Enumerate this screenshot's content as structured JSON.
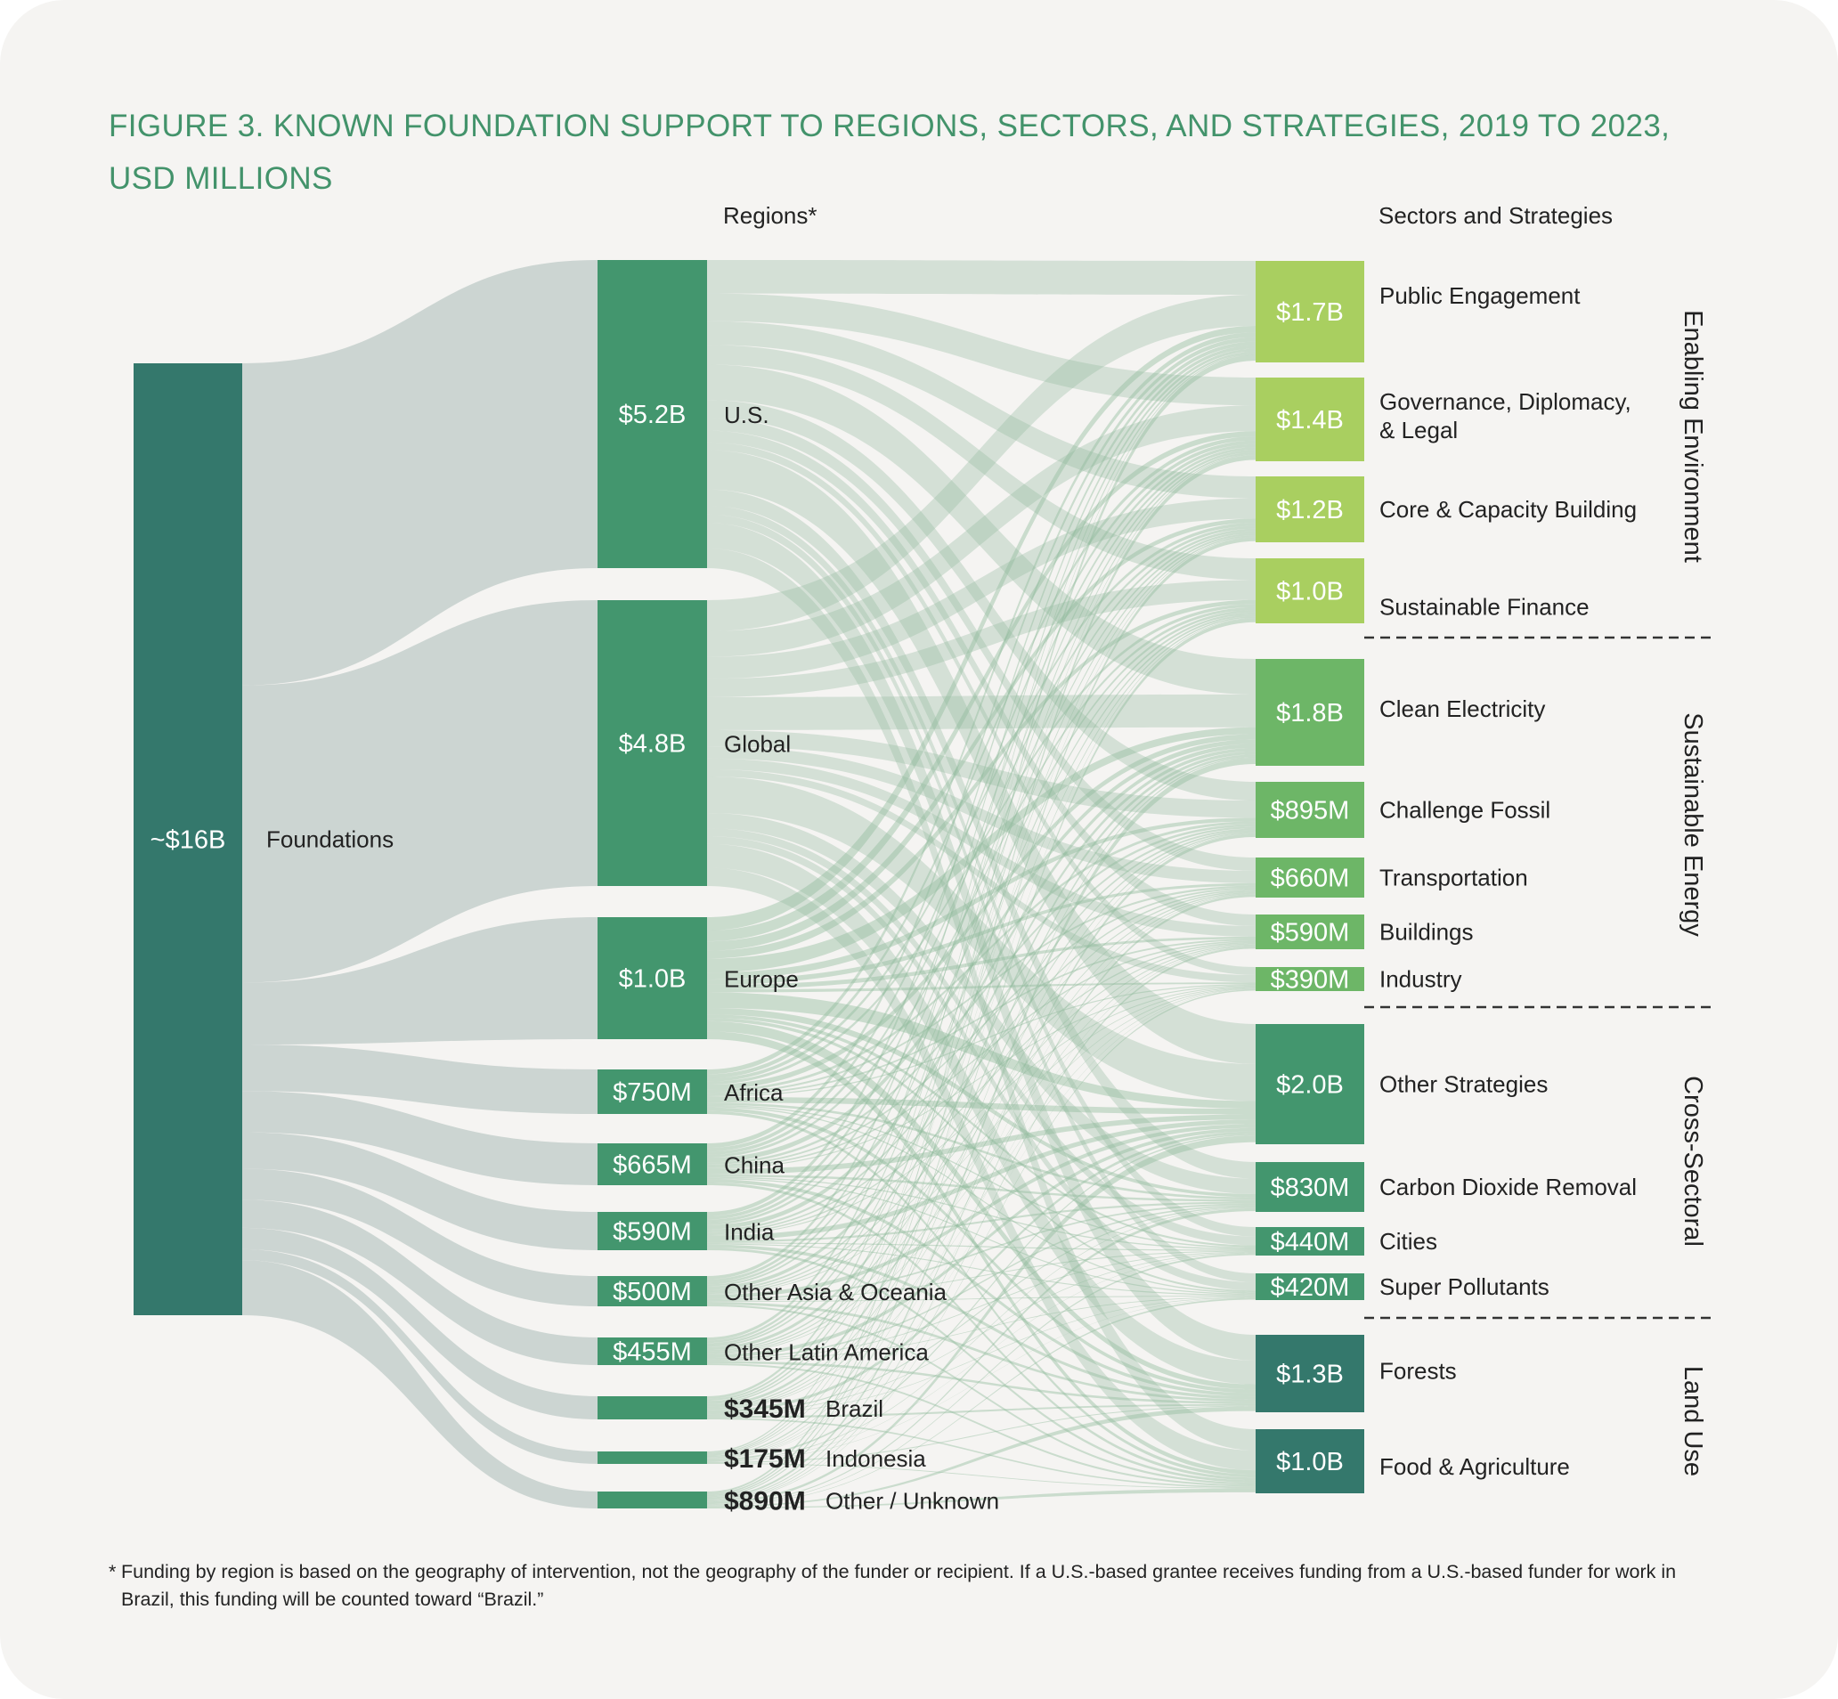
{
  "title": "FIGURE 3. KNOWN FOUNDATION SUPPORT TO REGIONS, SECTORS, AND STRATEGIES, 2019 TO 2023, USD MILLIONS",
  "colors": {
    "background": "#f5f4f2",
    "title": "#43936b",
    "flow_source": "#c9d3d0",
    "flow_region": "#8fb99c",
    "source_bar": "#34786c",
    "region_bar": "#43966e",
    "enabling": "#a9cf60",
    "energy": "#6db667",
    "cross": "#43966e",
    "land": "#34786c"
  },
  "chart_data": {
    "type": "sankey",
    "units": "USD millions",
    "column_headers": {
      "regions": "Regions*",
      "sectors": "Sectors and Strategies"
    },
    "source": {
      "label": "Foundations",
      "value_label": "~$16B",
      "value": 16000
    },
    "regions": [
      {
        "name": "U.S.",
        "value": 5200,
        "value_label": "$5.2B"
      },
      {
        "name": "Global",
        "value": 4800,
        "value_label": "$4.8B"
      },
      {
        "name": "Europe",
        "value": 1000,
        "value_label": "$1.0B"
      },
      {
        "name": "Africa",
        "value": 750,
        "value_label": "$750M"
      },
      {
        "name": "China",
        "value": 665,
        "value_label": "$665M"
      },
      {
        "name": "India",
        "value": 590,
        "value_label": "$590M"
      },
      {
        "name": "Other Asia & Oceania",
        "value": 500,
        "value_label": "$500M"
      },
      {
        "name": "Other Latin America",
        "value": 455,
        "value_label": "$455M"
      },
      {
        "name": "Brazil",
        "value": 345,
        "value_label": "$345M"
      },
      {
        "name": "Indonesia",
        "value": 175,
        "value_label": "$175M"
      },
      {
        "name": "Other / Unknown",
        "value": 890,
        "value_label": "$890M"
      }
    ],
    "sectors": [
      {
        "name": "Public Engagement",
        "value": 1700,
        "value_label": "$1.7B",
        "group": "enabling"
      },
      {
        "name": "Governance, Diplomacy, & Legal",
        "value": 1400,
        "value_label": "$1.4B",
        "group": "enabling"
      },
      {
        "name": "Core & Capacity Building",
        "value": 1200,
        "value_label": "$1.2B",
        "group": "enabling"
      },
      {
        "name": "Sustainable Finance",
        "value": 1000,
        "value_label": "$1.0B",
        "group": "enabling"
      },
      {
        "name": "Clean Electricity",
        "value": 1800,
        "value_label": "$1.8B",
        "group": "energy"
      },
      {
        "name": "Challenge Fossil",
        "value": 895,
        "value_label": "$895M",
        "group": "energy"
      },
      {
        "name": "Transportation",
        "value": 660,
        "value_label": "$660M",
        "group": "energy"
      },
      {
        "name": "Buildings",
        "value": 590,
        "value_label": "$590M",
        "group": "energy"
      },
      {
        "name": "Industry",
        "value": 390,
        "value_label": "$390M",
        "group": "energy"
      },
      {
        "name": "Other Strategies",
        "value": 2000,
        "value_label": "$2.0B",
        "group": "cross"
      },
      {
        "name": "Carbon Dioxide Removal",
        "value": 830,
        "value_label": "$830M",
        "group": "cross"
      },
      {
        "name": "Cities",
        "value": 440,
        "value_label": "$440M",
        "group": "cross"
      },
      {
        "name": "Super Pollutants",
        "value": 420,
        "value_label": "$420M",
        "group": "cross"
      },
      {
        "name": "Forests",
        "value": 1300,
        "value_label": "$1.3B",
        "group": "land"
      },
      {
        "name": "Food & Agriculture",
        "value": 1000,
        "value_label": "$1.0B",
        "group": "land"
      }
    ],
    "groups": [
      {
        "key": "enabling",
        "name": "Enabling Environment"
      },
      {
        "key": "energy",
        "name": "Sustainable Energy"
      },
      {
        "key": "cross",
        "name": "Cross-Sectoral"
      },
      {
        "key": "land",
        "name": "Land Use"
      }
    ]
  },
  "footnote": {
    "marker": "*",
    "text": "Funding by region is based on the geography of intervention, not the geography of the funder or recipient. If a U.S.-based grantee receives funding from a U.S.-based funder for work in Brazil, this funding will be counted toward “Brazil.”"
  }
}
